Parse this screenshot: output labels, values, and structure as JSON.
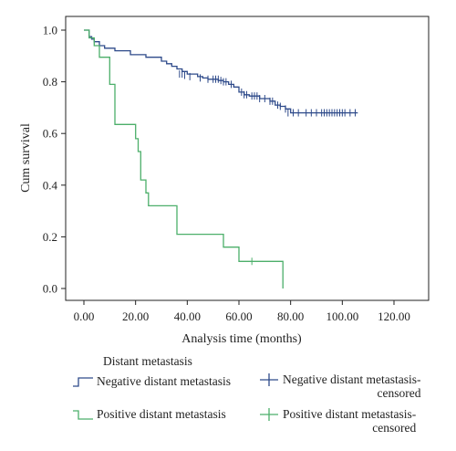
{
  "chart_data": {
    "type": "line",
    "title": "",
    "xlabel": "Analysis time (months)",
    "ylabel": "Cum survival",
    "xlim": [
      0,
      120
    ],
    "ylim": [
      0,
      1.0
    ],
    "x_ticks": [
      "0.00",
      "20.00",
      "40.00",
      "60.00",
      "80.00",
      "100.00",
      "120.00"
    ],
    "y_ticks": [
      "0.0",
      "0.2",
      "0.4",
      "0.6",
      "0.8",
      "1.0"
    ],
    "grid": false,
    "legend_position": "bottom",
    "legend_title": "Distant metastasis",
    "series": [
      {
        "name": "Negative distant metastasis",
        "color": "#2e4a8a",
        "step_x": [
          0,
          2,
          3,
          4,
          6,
          8,
          12,
          18,
          24,
          30,
          32,
          34,
          36,
          38,
          40,
          44,
          46,
          48,
          52,
          54,
          56,
          58,
          60,
          62,
          64,
          68,
          72,
          74,
          76,
          78,
          80,
          106
        ],
        "step_y": [
          1.0,
          0.975,
          0.965,
          0.955,
          0.94,
          0.93,
          0.92,
          0.905,
          0.895,
          0.88,
          0.87,
          0.86,
          0.85,
          0.84,
          0.83,
          0.82,
          0.815,
          0.81,
          0.805,
          0.8,
          0.79,
          0.78,
          0.76,
          0.75,
          0.745,
          0.735,
          0.725,
          0.71,
          0.705,
          0.695,
          0.68,
          0.68
        ]
      },
      {
        "name": "Positive distant metastasis",
        "color": "#4caf6a",
        "step_x": [
          0,
          2,
          4,
          6,
          10,
          12,
          20,
          21,
          22,
          24,
          25,
          36,
          54,
          60,
          77
        ],
        "step_y": [
          1.0,
          0.97,
          0.94,
          0.895,
          0.79,
          0.635,
          0.58,
          0.53,
          0.42,
          0.37,
          0.32,
          0.21,
          0.16,
          0.105,
          0.0
        ]
      }
    ],
    "censored": [
      {
        "name": "Negative distant metastasis-censored",
        "color": "#2e4a8a",
        "x": [
          37,
          38,
          39,
          41,
          45,
          48,
          50,
          51,
          52,
          53,
          54,
          55,
          57,
          61,
          62,
          63,
          65,
          66,
          67,
          68,
          70,
          72,
          73,
          75,
          76,
          78,
          79,
          81,
          83,
          86,
          88,
          90,
          92,
          93,
          94,
          95,
          96,
          97,
          98,
          99,
          100,
          101,
          103,
          105
        ],
        "y": [
          0.83,
          0.83,
          0.825,
          0.82,
          0.815,
          0.81,
          0.81,
          0.81,
          0.81,
          0.805,
          0.8,
          0.8,
          0.79,
          0.76,
          0.75,
          0.75,
          0.745,
          0.745,
          0.745,
          0.735,
          0.735,
          0.725,
          0.725,
          0.71,
          0.705,
          0.695,
          0.68,
          0.68,
          0.68,
          0.68,
          0.68,
          0.68,
          0.68,
          0.68,
          0.68,
          0.68,
          0.68,
          0.68,
          0.68,
          0.68,
          0.68,
          0.68,
          0.68,
          0.68
        ]
      },
      {
        "name": "Positive distant metastasis-censored",
        "color": "#4caf6a",
        "x": [
          65
        ],
        "y": [
          0.105
        ]
      }
    ]
  },
  "legend": {
    "title": "Distant metastasis",
    "negative_line": "Negative distant metastasis",
    "negative_censored_line1": "Negative distant metastasis-",
    "negative_censored_line2": "censored",
    "positive_line": "Positive distant metastasis",
    "positive_censored_line1": "Positive distant metastasis-",
    "positive_censored_line2": "censored"
  }
}
